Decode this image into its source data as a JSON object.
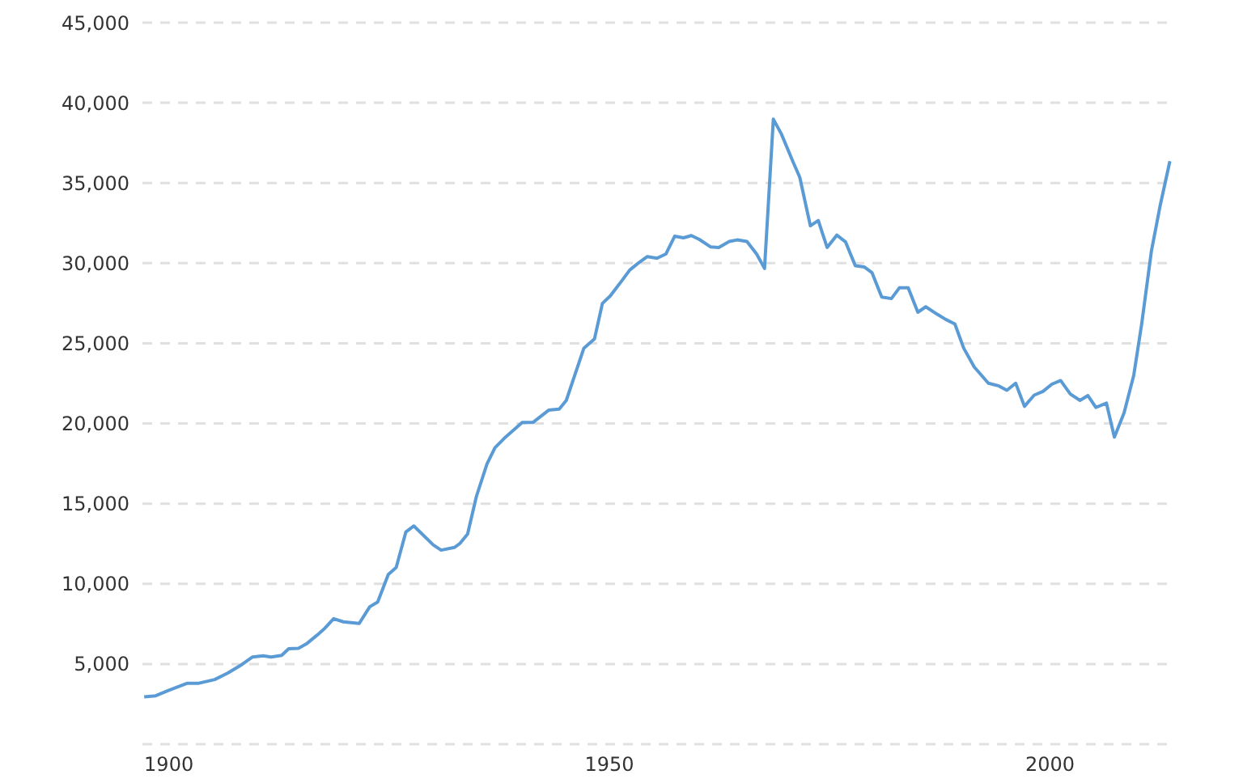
{
  "chart_data": {
    "type": "line",
    "x": [
      1897.2,
      1898.5,
      1900,
      1902.1,
      1903.4,
      1905.2,
      1906.7,
      1908.3,
      1909.5,
      1910.7,
      1911.6,
      1912.8,
      1913.6,
      1914.7,
      1915.6,
      1916.8,
      1917.7,
      1918.7,
      1919.8,
      1921.6,
      1922.8,
      1923.7,
      1924.9,
      1925.8,
      1926.9,
      1927.8,
      1930,
      1930.9,
      1932.4,
      1933,
      1933.9,
      1934.9,
      1936.1,
      1937,
      1938.2,
      1940.1,
      1941.3,
      1943.1,
      1944.3,
      1945.1,
      1947.1,
      1948.3,
      1949.2,
      1950.1,
      1951.4,
      1952.3,
      1953.2,
      1954.3,
      1955.4,
      1956.4,
      1957.4,
      1958.4,
      1959.3,
      1960.2,
      1961.5,
      1962.4,
      1963.6,
      1964.5,
      1965.6,
      1966.7,
      1967.6,
      1968.6,
      1969.5,
      1970.8,
      1971.6,
      1972.8,
      1973.7,
      1974.7,
      1975.8,
      1976.8,
      1977.9,
      1978.9,
      1979.8,
      1980.9,
      1982,
      1982.9,
      1983.9,
      1985,
      1985.9,
      1987.2,
      1988.2,
      1989.2,
      1990.2,
      1991.4,
      1993,
      1994.2,
      1995.1,
      1996.1,
      1997.1,
      1998.2,
      1999.2,
      2000.2,
      2001.2,
      2002.3,
      2003.4,
      2004.3,
      2005.2,
      2006.4,
      2007.3,
      2008.4,
      2009.5,
      2010.4,
      2011.5,
      2012.5,
      2013.6
    ],
    "series": [
      {
        "color": "#5b9bd5",
        "values": [
          2950,
          3020,
          3360,
          3800,
          3800,
          4030,
          4440,
          4970,
          5440,
          5510,
          5440,
          5540,
          5950,
          5980,
          6250,
          6790,
          7230,
          7830,
          7630,
          7530,
          8570,
          8870,
          10580,
          11020,
          13240,
          13610,
          12430,
          12100,
          12270,
          12500,
          13100,
          15450,
          17470,
          18480,
          19150,
          20060,
          20060,
          20830,
          20900,
          21440,
          24700,
          25270,
          27490,
          27960,
          28900,
          29570,
          29970,
          30410,
          30310,
          30570,
          31680,
          31580,
          31720,
          31480,
          31010,
          30980,
          31350,
          31450,
          31350,
          30570,
          29670,
          38980,
          38070,
          36360,
          35350,
          32330,
          32660,
          30980,
          31750,
          31320,
          29840,
          29770,
          29400,
          27890,
          27790,
          28460,
          28460,
          26940,
          27280,
          26810,
          26480,
          26210,
          24700,
          23520,
          22510,
          22340,
          22070,
          22510,
          21070,
          21770,
          22000,
          22450,
          22680,
          21840,
          21440,
          21740,
          21000,
          21270,
          19150,
          20660,
          23010,
          26210,
          30740,
          33600,
          36360
        ]
      }
    ],
    "xlim": [
      1897,
      2014
    ],
    "xticks": [
      1900,
      1950,
      2000
    ],
    "ylim": [
      0,
      45000
    ],
    "yticks": [
      {
        "value": 0,
        "label": null
      },
      {
        "value": 5000,
        "label": "5,000"
      },
      {
        "value": 10000,
        "label": "10,000"
      },
      {
        "value": 15000,
        "label": "15,000"
      },
      {
        "value": 20000,
        "label": "20,000"
      },
      {
        "value": 25000,
        "label": "25,000"
      },
      {
        "value": 30000,
        "label": "30,000"
      },
      {
        "value": 35000,
        "label": "35,000"
      },
      {
        "value": 40000,
        "label": "40,000"
      },
      {
        "value": 45000,
        "label": "45,000"
      }
    ],
    "grid": "y",
    "marker": "none",
    "line_style": "solid",
    "legend": false
  }
}
